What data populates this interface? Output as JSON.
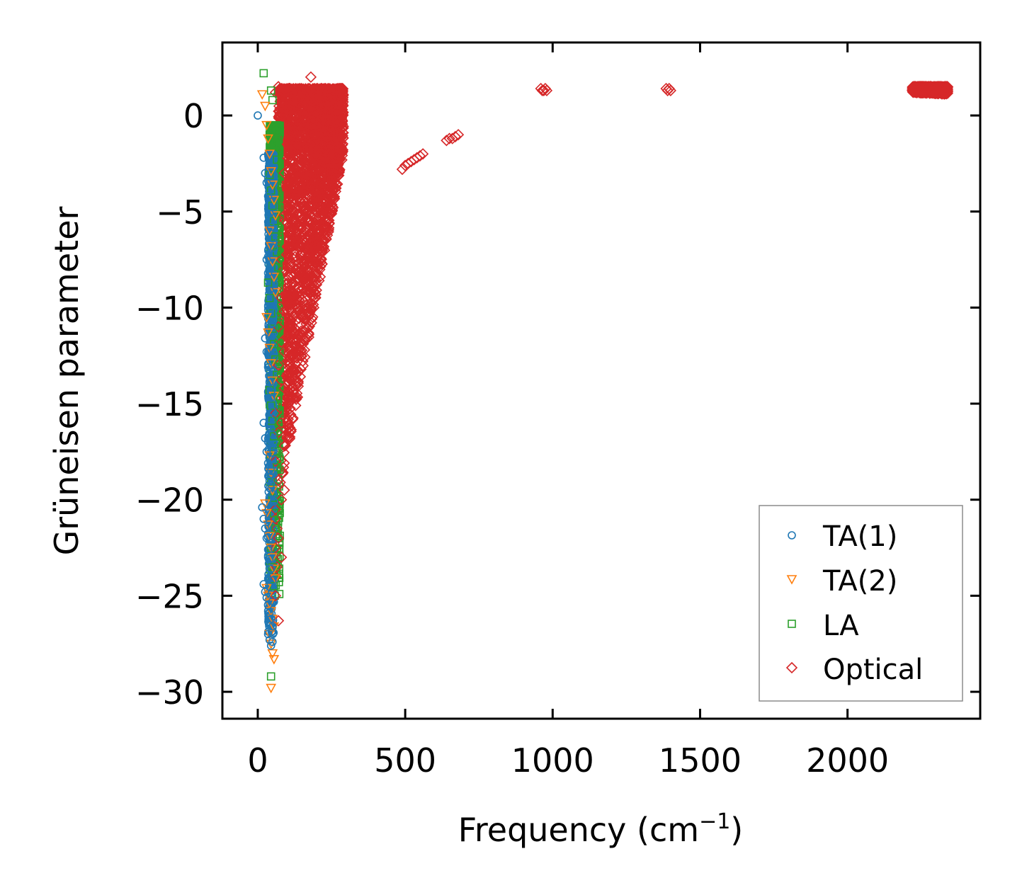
{
  "chart_data": {
    "type": "scatter",
    "title": "",
    "xlabel": "Frequency (cm",
    "xlabel_sup": "−1",
    "xlabel_end": ")",
    "ylabel": "Grüneisen parameter",
    "xlim": [
      -120,
      2450
    ],
    "ylim": [
      -31.4,
      3.8
    ],
    "xticks": [
      0,
      500,
      1000,
      1500,
      2000
    ],
    "xtick_labels": [
      "0",
      "500",
      "1000",
      "1500",
      "2000"
    ],
    "yticks": [
      0,
      -5,
      -10,
      -15,
      -20,
      -25,
      -30
    ],
    "ytick_labels": [
      "0",
      "−5",
      "−10",
      "−15",
      "−20",
      "−25",
      "−30"
    ],
    "grid": false,
    "legend_position": "lower-right",
    "series": [
      {
        "name": "TA(1)",
        "marker": "circle",
        "color": "#1f77b4",
        "x": [
          0,
          20,
          25,
          30,
          35,
          40,
          45,
          50,
          55,
          30,
          35,
          40,
          45,
          50,
          25,
          30,
          35,
          40,
          45,
          50,
          20,
          25,
          30,
          35,
          40,
          45,
          50,
          55,
          15,
          20,
          25,
          30,
          35,
          40,
          45,
          50,
          20,
          25,
          30,
          35,
          40,
          45,
          50,
          35,
          40,
          45,
          50,
          40,
          45,
          50,
          45,
          50,
          40,
          45
        ],
        "y": [
          0,
          -2.2,
          -3.0,
          -3.5,
          -4.2,
          -5.1,
          -5.8,
          -6.4,
          -6.9,
          -7.5,
          -8.2,
          -9.1,
          -10.0,
          -10.8,
          -11.6,
          -12.3,
          -13.1,
          -13.9,
          -14.7,
          -15.4,
          -16.0,
          -16.8,
          -17.5,
          -18.1,
          -18.8,
          -19.2,
          -19.7,
          -20.1,
          -20.4,
          -21.0,
          -21.5,
          -22.0,
          -22.6,
          -23.1,
          -23.6,
          -24.2,
          -24.4,
          -24.8,
          -25.1,
          -25.5,
          -25.9,
          -26.2,
          -26.6,
          -27.0,
          -27.3,
          -27.6,
          -27.4,
          -19.0,
          -18.5,
          -17.9,
          -17.2,
          -16.6,
          -15.8,
          -14.4
        ]
      },
      {
        "name": "TA(2)",
        "marker": "triangle-down",
        "color": "#ff7f0e",
        "x": [
          15,
          25,
          30,
          35,
          40,
          45,
          50,
          55,
          60,
          40,
          45,
          50,
          55,
          60,
          30,
          35,
          40,
          45,
          50,
          55,
          25,
          30,
          35,
          40,
          45,
          50,
          55,
          60,
          30,
          35,
          40,
          45,
          50,
          55,
          40,
          45,
          50,
          55,
          45,
          50,
          45,
          40
        ],
        "y": [
          1.1,
          0.5,
          -0.5,
          -1.2,
          -2.0,
          -2.9,
          -3.6,
          -4.4,
          -5.2,
          -6.0,
          -6.8,
          -7.6,
          -8.4,
          -9.2,
          -10.5,
          -11.3,
          -12.1,
          -12.9,
          -13.8,
          -14.6,
          -20.2,
          -20.7,
          -21.3,
          -21.9,
          -22.5,
          -23.0,
          -23.6,
          -24.1,
          -24.6,
          -25.0,
          -25.4,
          -25.8,
          -26.2,
          -26.6,
          -27.0,
          -27.5,
          -28.0,
          -28.3,
          -29.8,
          -19.5,
          -18.6,
          -17.7
        ]
      },
      {
        "name": "LA",
        "marker": "square",
        "color": "#2ca02c",
        "x": [
          20,
          45,
          50,
          55,
          60,
          65,
          40,
          45,
          50,
          55,
          60,
          65,
          70,
          35,
          40,
          45,
          50,
          55,
          60,
          65,
          40,
          45,
          50,
          55,
          60,
          65,
          45,
          50,
          55,
          60,
          45,
          50,
          55,
          45
        ],
        "y": [
          2.2,
          1.3,
          0.8,
          -0.8,
          -1.5,
          -2.3,
          -3.1,
          -3.9,
          -4.7,
          -5.5,
          -6.3,
          -7.1,
          -7.9,
          -8.7,
          -9.5,
          -10.3,
          -11.1,
          -11.9,
          -12.7,
          -13.5,
          -14.3,
          -15.1,
          -15.9,
          -16.7,
          -17.5,
          -18.3,
          -19.1,
          -19.9,
          -20.7,
          -21.5,
          -22.5,
          -23.5,
          -24.5,
          -29.2
        ]
      },
      {
        "name": "Optical",
        "marker": "diamond",
        "color": "#d62728",
        "x": [
          180,
          60,
          70,
          80,
          100,
          110,
          120,
          130,
          150,
          160,
          170,
          190,
          200,
          210,
          220,
          230,
          240,
          250,
          260,
          270,
          280,
          100,
          110,
          120,
          130,
          140,
          150,
          160,
          170,
          180,
          190,
          200,
          210,
          220,
          230,
          240,
          250,
          260,
          90,
          100,
          110,
          120,
          130,
          140,
          150,
          160,
          170,
          180,
          190,
          200,
          210,
          220,
          230,
          240,
          90,
          100,
          110,
          120,
          130,
          140,
          150,
          160,
          170,
          180,
          190,
          200,
          210,
          220,
          80,
          90,
          100,
          110,
          120,
          130,
          140,
          150,
          160,
          170,
          180,
          190,
          200,
          80,
          90,
          100,
          110,
          120,
          130,
          140,
          150,
          160,
          170,
          180,
          70,
          80,
          90,
          100,
          110,
          120,
          130,
          140,
          70,
          80,
          90,
          100,
          110,
          120,
          60,
          70,
          80,
          90,
          100,
          60,
          70,
          80,
          90,
          60,
          70,
          80,
          60,
          70,
          120,
          110,
          100,
          125,
          115,
          60,
          65,
          60,
          65,
          60,
          490,
          500,
          510,
          520,
          530,
          540,
          550,
          560,
          640,
          650,
          660,
          670,
          680,
          960,
          965,
          970,
          975,
          980,
          1385,
          1390,
          1395,
          1400,
          2230,
          2240,
          2250,
          2260,
          2270,
          2280,
          2290,
          2300,
          2310,
          2320,
          2330
        ],
        "y": [
          2.0,
          1.2,
          1.5,
          1.0,
          0.3,
          0.0,
          0.8,
          1.1,
          1.3,
          1.2,
          1.0,
          1.1,
          0.9,
          1.3,
          1.0,
          1.4,
          1.2,
          0.8,
          0.3,
          -0.5,
          0.0,
          -1.5,
          -1.2,
          -1.8,
          -1.0,
          -0.8,
          -1.5,
          -2.0,
          -1.2,
          -0.5,
          -1.0,
          -1.3,
          -0.9,
          -1.4,
          -2.2,
          -1.8,
          -2.5,
          -2.0,
          -3.0,
          -3.5,
          -2.8,
          -3.2,
          -4.0,
          -3.5,
          -2.9,
          -3.7,
          -4.2,
          -3.1,
          -3.9,
          -4.5,
          -3.6,
          -4.1,
          -4.8,
          -5.0,
          -5.2,
          -5.6,
          -6.0,
          -5.4,
          -6.3,
          -5.8,
          -6.5,
          -6.9,
          -5.5,
          -6.2,
          -7.0,
          -6.1,
          -5.7,
          -6.6,
          -7.5,
          -8.0,
          -7.2,
          -8.3,
          -7.7,
          -8.6,
          -9.0,
          -8.2,
          -7.9,
          -8.8,
          -7.4,
          -8.1,
          -7.6,
          -9.5,
          -10.2,
          -9.8,
          -10.6,
          -9.3,
          -10.0,
          -9.6,
          -9.1,
          -8.7,
          -9.4,
          -8.5,
          -11.0,
          -11.8,
          -12.3,
          -11.5,
          -12.6,
          -11.2,
          -12.0,
          -11.4,
          -13.0,
          -13.8,
          -14.2,
          -13.5,
          -14.5,
          -13.2,
          -15.5,
          -16.5,
          -16.0,
          -17.2,
          -16.8,
          -18.0,
          -19.0,
          -20.0,
          -19.5,
          -21.0,
          -22.0,
          -23.0,
          -24.0,
          -26.3,
          -14.7,
          -13.6,
          -12.8,
          -11.6,
          -12.4,
          -20.5,
          -21.5,
          -22.5,
          -23.5,
          -25.0,
          -2.8,
          -2.6,
          -2.5,
          -2.4,
          -2.3,
          -2.2,
          -2.1,
          -2.0,
          -1.3,
          -1.2,
          -1.2,
          -1.1,
          -1.0,
          1.4,
          1.3,
          1.3,
          1.4,
          1.3,
          1.4,
          1.3,
          1.4,
          1.3,
          1.4,
          1.4,
          1.3,
          1.3,
          1.4,
          1.3,
          1.3,
          1.2,
          1.3,
          1.3,
          1.2
        ]
      }
    ],
    "dense_regions": [
      {
        "series": "Optical",
        "x_range": [
          70,
          290
        ],
        "y_top": 1.4,
        "y_bottom_left": -20.0,
        "y_bottom_right": -2.0
      },
      {
        "series": "LA",
        "x_range": [
          40,
          75
        ],
        "y_top": -0.5,
        "y_bottom_left": -25.0,
        "y_bottom_right": -25.0
      },
      {
        "series": "TA(1)",
        "x_range": [
          35,
          55
        ],
        "y_top": -2.0,
        "y_bottom_left": -27.0,
        "y_bottom_right": -27.0
      },
      {
        "series": "Optical",
        "x_range": [
          2220,
          2340
        ],
        "y_top": 1.5,
        "y_bottom_left": 1.2,
        "y_bottom_right": 1.1
      }
    ]
  }
}
